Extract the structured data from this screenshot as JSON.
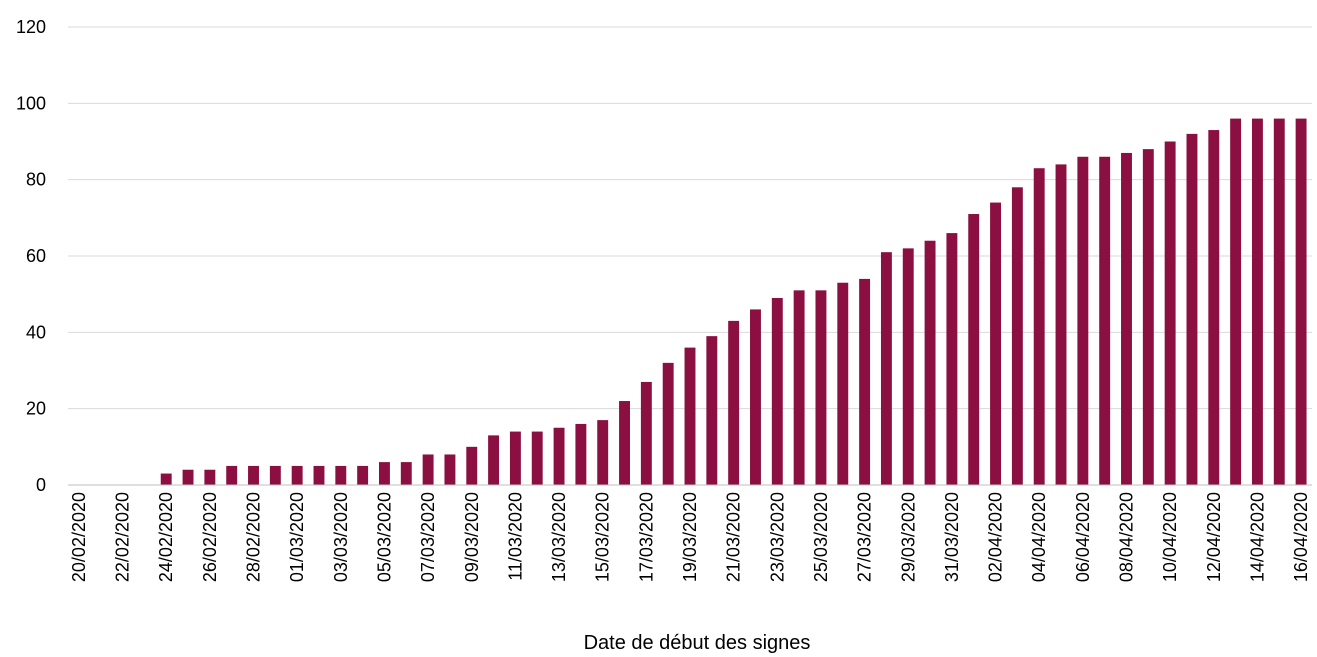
{
  "chart_data": {
    "type": "bar",
    "title": "",
    "xlabel": "Date de début des signes",
    "ylabel": "",
    "ylim": [
      0,
      120
    ],
    "yticks": [
      0,
      20,
      40,
      60,
      80,
      100,
      120
    ],
    "grid": true,
    "bar_color": "#8b0f40",
    "categories": [
      "20/02/2020",
      "21/02/2020",
      "22/02/2020",
      "23/02/2020",
      "24/02/2020",
      "25/02/2020",
      "26/02/2020",
      "27/02/2020",
      "28/02/2020",
      "29/02/2020",
      "01/03/2020",
      "02/03/2020",
      "03/03/2020",
      "04/03/2020",
      "05/03/2020",
      "06/03/2020",
      "07/03/2020",
      "08/03/2020",
      "09/03/2020",
      "10/03/2020",
      "11/03/2020",
      "12/03/2020",
      "13/03/2020",
      "14/03/2020",
      "15/03/2020",
      "16/03/2020",
      "17/03/2020",
      "18/03/2020",
      "19/03/2020",
      "20/03/2020",
      "21/03/2020",
      "22/03/2020",
      "23/03/2020",
      "24/03/2020",
      "25/03/2020",
      "26/03/2020",
      "27/03/2020",
      "28/03/2020",
      "29/03/2020",
      "30/03/2020",
      "31/03/2020",
      "01/04/2020",
      "02/04/2020",
      "03/04/2020",
      "04/04/2020",
      "05/04/2020",
      "06/04/2020",
      "07/04/2020",
      "08/04/2020",
      "09/04/2020",
      "10/04/2020",
      "11/04/2020",
      "12/04/2020",
      "13/04/2020",
      "14/04/2020",
      "15/04/2020",
      "16/04/2020"
    ],
    "tick_labels": [
      "20/02/2020",
      "22/02/2020",
      "24/02/2020",
      "26/02/2020",
      "28/02/2020",
      "01/03/2020",
      "03/03/2020",
      "05/03/2020",
      "07/03/2020",
      "09/03/2020",
      "11/03/2020",
      "13/03/2020",
      "15/03/2020",
      "17/03/2020",
      "19/03/2020",
      "21/03/2020",
      "23/03/2020",
      "25/03/2020",
      "27/03/2020",
      "29/03/2020",
      "31/03/2020",
      "02/04/2020",
      "04/04/2020",
      "06/04/2020",
      "08/04/2020",
      "10/04/2020",
      "12/04/2020",
      "14/04/2020",
      "16/04/2020"
    ],
    "values": [
      0,
      0,
      0,
      0,
      3,
      4,
      4,
      5,
      5,
      5,
      5,
      5,
      5,
      5,
      6,
      6,
      8,
      8,
      10,
      13,
      14,
      14,
      15,
      16,
      17,
      22,
      27,
      32,
      36,
      39,
      43,
      46,
      49,
      51,
      51,
      53,
      54,
      61,
      62,
      64,
      66,
      71,
      74,
      78,
      83,
      84,
      86,
      86,
      87,
      88,
      90,
      92,
      93,
      96,
      96,
      96,
      96
    ]
  }
}
